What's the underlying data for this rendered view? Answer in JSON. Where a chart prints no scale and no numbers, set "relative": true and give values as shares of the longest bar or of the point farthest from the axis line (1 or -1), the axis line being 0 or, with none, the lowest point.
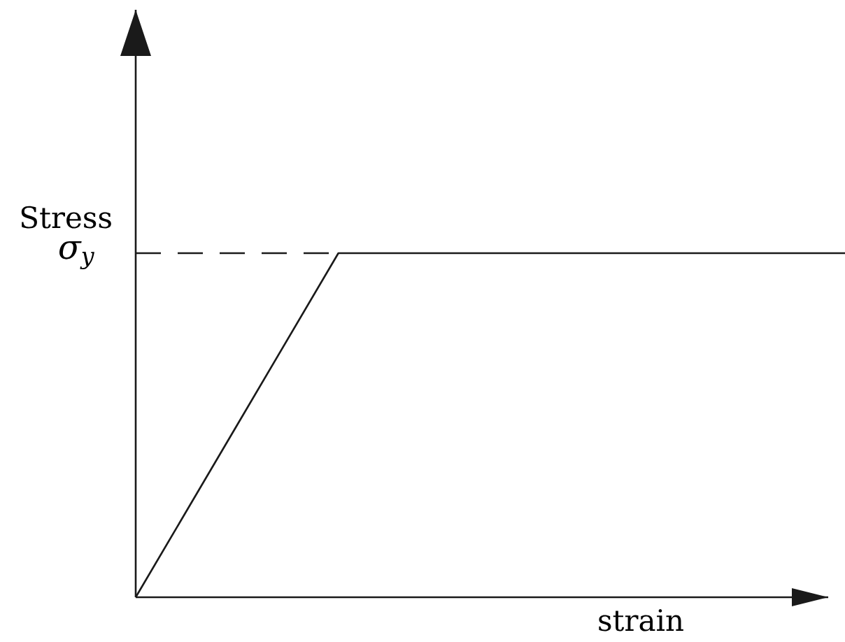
{
  "chart_data": {
    "type": "line",
    "xlabel": "strain",
    "ylabel": "Stress",
    "categories": [
      null,
      null,
      null,
      null,
      null,
      null,
      null,
      null
    ],
    "values": [
      0,
      0.5,
      1,
      1,
      1,
      1,
      1,
      1
    ],
    "color": "#1a1a1a",
    "relative": true,
    "marker": "none",
    "line_style": "solid",
    "ref_lines": [
      {
        "axis": "y",
        "value": 1,
        "label": "σ$_{y}$",
        "color": "#1a1a1a",
        "line_style": "dashed"
      }
    ]
  }
}
